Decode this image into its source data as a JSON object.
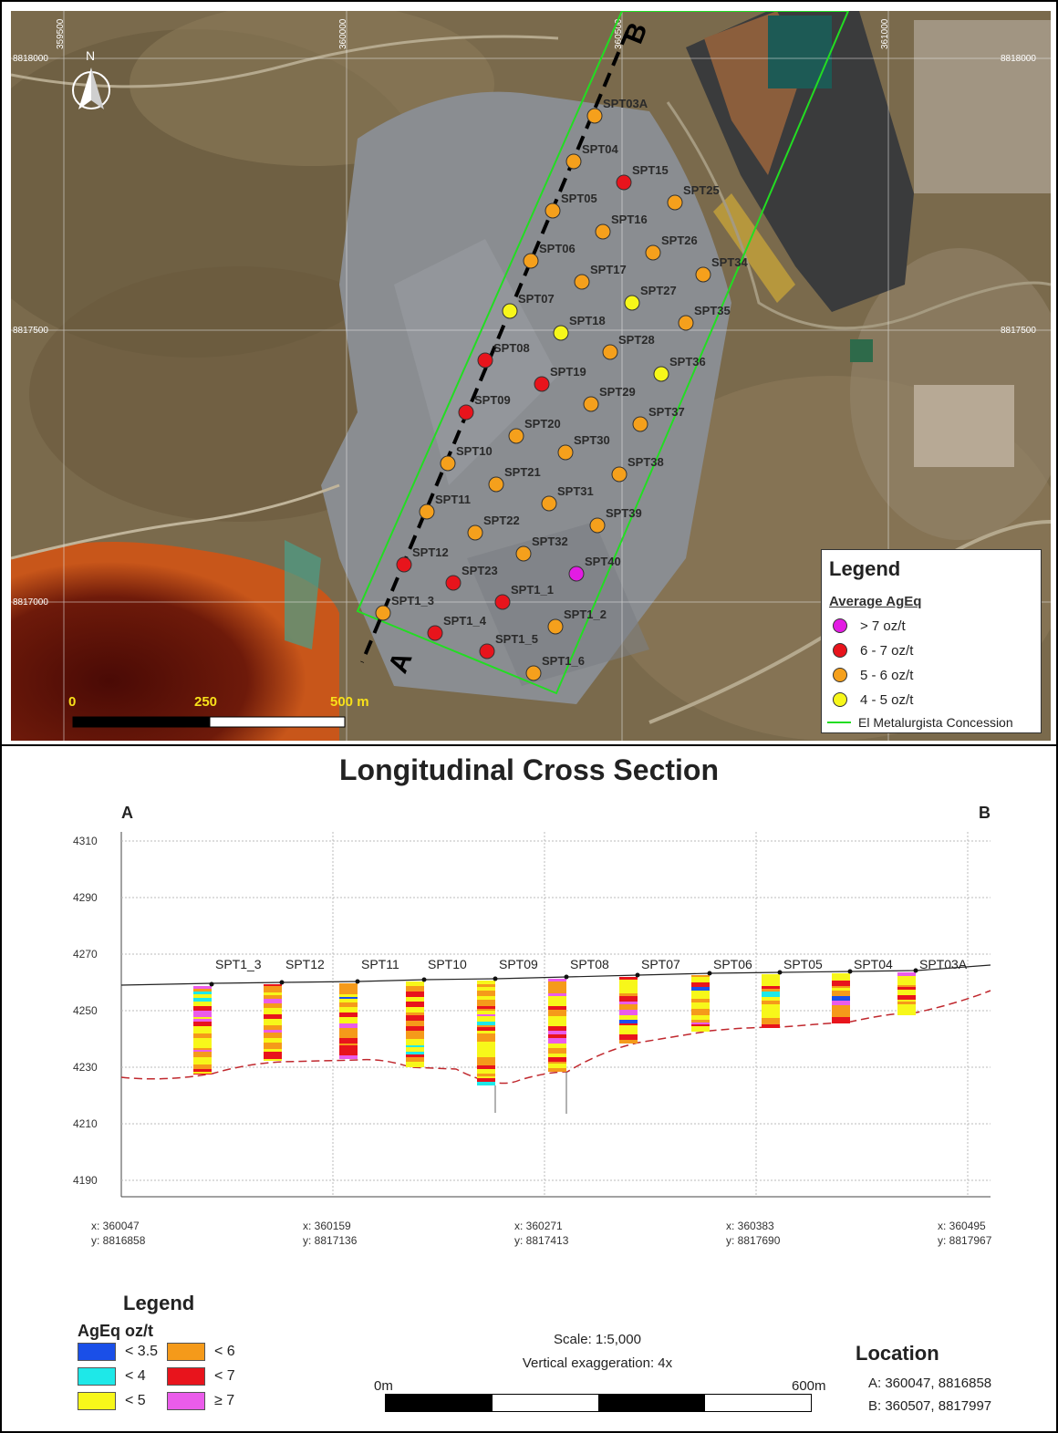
{
  "map": {
    "north_label": "N",
    "grid_x": [
      "359500",
      "360000",
      "360500",
      "361000"
    ],
    "grid_y": [
      "8818000",
      "8817500",
      "8817000"
    ],
    "section_a": "A",
    "section_b": "B",
    "scale_labels": [
      "0",
      "250",
      "500 m"
    ],
    "points": [
      {
        "id": "SPT03A",
        "grade": "5-6"
      },
      {
        "id": "SPT04",
        "grade": "5-6"
      },
      {
        "id": "SPT05",
        "grade": "5-6"
      },
      {
        "id": "SPT06",
        "grade": "5-6"
      },
      {
        "id": "SPT07",
        "grade": "4-5"
      },
      {
        "id": "SPT08",
        "grade": "6-7"
      },
      {
        "id": "SPT09",
        "grade": "6-7"
      },
      {
        "id": "SPT10",
        "grade": "5-6"
      },
      {
        "id": "SPT11",
        "grade": "5-6"
      },
      {
        "id": "SPT12",
        "grade": "6-7"
      },
      {
        "id": "SPT1_3",
        "grade": "5-6"
      },
      {
        "id": "SPT15",
        "grade": "6-7"
      },
      {
        "id": "SPT16",
        "grade": "5-6"
      },
      {
        "id": "SPT17",
        "grade": "5-6"
      },
      {
        "id": "SPT18",
        "grade": "4-5"
      },
      {
        "id": "SPT19",
        "grade": "6-7"
      },
      {
        "id": "SPT20",
        "grade": "5-6"
      },
      {
        "id": "SPT21",
        "grade": "5-6"
      },
      {
        "id": "SPT22",
        "grade": "5-6"
      },
      {
        "id": "SPT23",
        "grade": "6-7"
      },
      {
        "id": "SPT1_4",
        "grade": "6-7"
      },
      {
        "id": "SPT25",
        "grade": "5-6"
      },
      {
        "id": "SPT26",
        "grade": "5-6"
      },
      {
        "id": "SPT27",
        "grade": "4-5"
      },
      {
        "id": "SPT28",
        "grade": "5-6"
      },
      {
        "id": "SPT29",
        "grade": "5-6"
      },
      {
        "id": "SPT30",
        "grade": "5-6"
      },
      {
        "id": "SPT31",
        "grade": "5-6"
      },
      {
        "id": "SPT32",
        "grade": "5-6"
      },
      {
        "id": "SPT1_1",
        "grade": "6-7"
      },
      {
        "id": "SPT1_5",
        "grade": "6-7"
      },
      {
        "id": "SPT34",
        "grade": "5-6"
      },
      {
        "id": "SPT35",
        "grade": "5-6"
      },
      {
        "id": "SPT36",
        "grade": "4-5"
      },
      {
        "id": "SPT37",
        "grade": "5-6"
      },
      {
        "id": "SPT38",
        "grade": "5-6"
      },
      {
        "id": "SPT39",
        "grade": "5-6"
      },
      {
        "id": "SPT40",
        "grade": ">7"
      },
      {
        "id": "SPT1_2",
        "grade": "5-6"
      },
      {
        "id": "SPT1_6",
        "grade": "5-6"
      }
    ],
    "legend": {
      "title": "Legend",
      "subtitle": "Average AgEq",
      "items": [
        {
          "label": "> 7 oz/t",
          "color": "#e31ce3"
        },
        {
          "label": "6 - 7 oz/t",
          "color": "#e8141c"
        },
        {
          "label": "5 - 6 oz/t",
          "color": "#f5a01c"
        },
        {
          "label": "4 - 5 oz/t",
          "color": "#f7f71a"
        }
      ],
      "concession_label": "El Metalurgista Concession",
      "concession_color": "#22dd22"
    }
  },
  "section": {
    "title": "Longitudinal Cross Section",
    "end_a": "A",
    "end_b": "B",
    "y_ticks": [
      "4310",
      "4290",
      "4270",
      "4250",
      "4230",
      "4210",
      "4190"
    ],
    "x_ticks": [
      {
        "x": "x: 360047",
        "y": "y: 8816858"
      },
      {
        "x": "x: 360159",
        "y": "y: 8817136"
      },
      {
        "x": "x: 360271",
        "y": "y: 8817413"
      },
      {
        "x": "x: 360383",
        "y": "y: 8817690"
      },
      {
        "x": "x: 360495",
        "y": "y: 8817967"
      }
    ],
    "wells": [
      "SPT1_3",
      "SPT12",
      "SPT11",
      "SPT10",
      "SPT09",
      "SPT08",
      "SPT07",
      "SPT06",
      "SPT05",
      "SPT04",
      "SPT03A"
    ],
    "legend": {
      "title": "Legend",
      "subtitle": "AgEq oz/t",
      "items": [
        {
          "label": "< 3.5",
          "color": "#1a4fe8"
        },
        {
          "label": "< 4",
          "color": "#1ee8e8"
        },
        {
          "label": "< 5",
          "color": "#f7f71a"
        },
        {
          "label": "< 6",
          "color": "#f59a1a"
        },
        {
          "label": "< 7",
          "color": "#e8141c"
        },
        {
          "label": "≥ 7",
          "color": "#ea5cea"
        }
      ]
    },
    "scale": "Scale: 1:5,000",
    "vertical_exaggeration": "Vertical exaggeration: 4x",
    "bar_start": "0m",
    "bar_end": "600m",
    "location": {
      "title": "Location",
      "a": "A:   360047, 8816858",
      "b": "B:   360507, 8817997"
    }
  }
}
